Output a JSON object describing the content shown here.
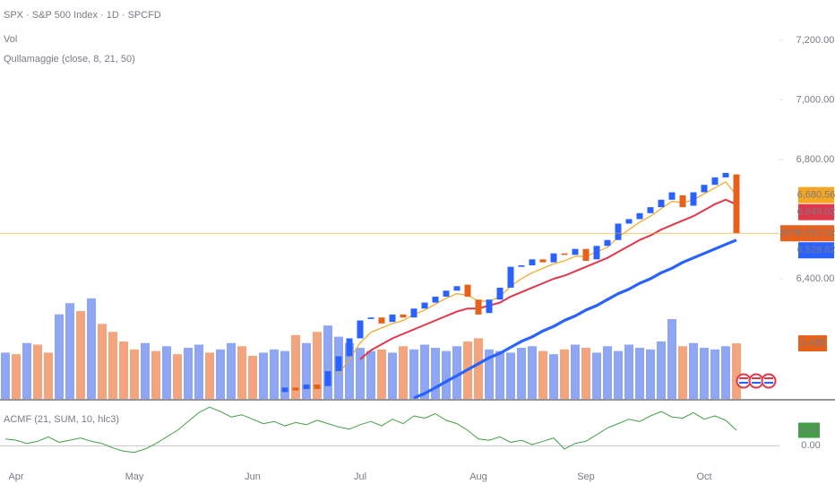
{
  "chart_data": {
    "type": "candlestick",
    "title": "SPX · S&P 500 Index · 1D · SPCFD",
    "volume_title": "Vol",
    "overlay_title": "Qullamaggie (close, 8, 21, 50)",
    "price_tag": "SPX",
    "categories": [
      null,
      "Apr",
      null,
      null,
      null,
      null,
      null,
      null,
      null,
      null,
      null,
      null,
      "May",
      null,
      null,
      null,
      null,
      null,
      null,
      null,
      null,
      null,
      null,
      "Jun",
      null,
      null,
      null,
      null,
      null,
      null,
      null,
      null,
      null,
      "Jul",
      null,
      null,
      null,
      null,
      null,
      null,
      null,
      null,
      null,
      null,
      "Aug",
      null,
      null,
      null,
      null,
      null,
      null,
      null,
      null,
      null,
      "Sep",
      null,
      null,
      null,
      null,
      null,
      null,
      null,
      null,
      null,
      null,
      "Oct",
      null,
      null,
      null
    ],
    "open": [
      null,
      null,
      null,
      null,
      null,
      null,
      null,
      null,
      null,
      null,
      null,
      null,
      null,
      null,
      null,
      null,
      null,
      null,
      null,
      null,
      null,
      null,
      null,
      null,
      null,
      null,
      6020,
      6035,
      6030,
      6045,
      6040,
      6090,
      6140,
      6200,
      6265,
      6270,
      6255,
      6280,
      6270,
      6300,
      6320,
      6340,
      6360,
      6380,
      6330,
      6285,
      6330,
      6370,
      6440,
      6445,
      6465,
      6455,
      6485,
      6480,
      6500,
      6465,
      6510,
      6530,
      6585,
      6600,
      6620,
      6640,
      6665,
      6680,
      6645,
      6690,
      6715,
      6740,
      6750
    ],
    "close": [
      null,
      null,
      null,
      null,
      null,
      null,
      null,
      null,
      null,
      null,
      null,
      null,
      null,
      null,
      null,
      null,
      null,
      null,
      null,
      null,
      null,
      null,
      null,
      null,
      null,
      null,
      6035,
      6025,
      6045,
      6030,
      6090,
      6140,
      6200,
      6260,
      6270,
      6250,
      6280,
      6270,
      6300,
      6320,
      6340,
      6360,
      6375,
      6340,
      6280,
      6330,
      6370,
      6440,
      6445,
      6465,
      6455,
      6485,
      6480,
      6500,
      6460,
      6510,
      6530,
      6585,
      6600,
      6620,
      6640,
      6665,
      6690,
      6640,
      6690,
      6715,
      6740,
      6755,
      6552.52
    ],
    "close_last_label": "6,552.52",
    "up_color": "#2962ff",
    "down_color": "#e8611a",
    "ylim": [
      5997,
      7335
    ],
    "yticks": [
      {
        "value": 7200,
        "label": "7,200.00"
      },
      {
        "value": 7000,
        "label": "7,000.00"
      },
      {
        "value": 6800,
        "label": "6,800.00"
      },
      {
        "value": 6400,
        "label": "6,400.00"
      }
    ],
    "series": [
      {
        "color": "#f5a623",
        "last_label": "6,680.56",
        "values": [
          null,
          null,
          null,
          null,
          null,
          null,
          null,
          null,
          null,
          null,
          null,
          null,
          null,
          null,
          null,
          null,
          null,
          null,
          null,
          null,
          null,
          null,
          null,
          null,
          null,
          null,
          null,
          null,
          null,
          null,
          null,
          6080,
          6130,
          6185,
          6220,
          6235,
          6250,
          6260,
          6280,
          6295,
          6315,
          6335,
          6350,
          6345,
          6325,
          6325,
          6340,
          6375,
          6400,
          6420,
          6435,
          6450,
          6460,
          6475,
          6475,
          6490,
          6505,
          6540,
          6565,
          6590,
          6610,
          6635,
          6660,
          6655,
          6665,
          6685,
          6705,
          6725,
          6680.56
        ]
      },
      {
        "color": "#e0384a",
        "last_label": "6,649.02",
        "values": [
          null,
          null,
          null,
          null,
          null,
          null,
          null,
          null,
          null,
          null,
          null,
          null,
          null,
          null,
          null,
          null,
          null,
          null,
          null,
          null,
          null,
          null,
          null,
          null,
          null,
          null,
          null,
          null,
          null,
          null,
          null,
          null,
          null,
          6130,
          6160,
          6180,
          6200,
          6215,
          6230,
          6245,
          6260,
          6275,
          6290,
          6300,
          6300,
          6310,
          6320,
          6340,
          6355,
          6370,
          6385,
          6400,
          6410,
          6425,
          6440,
          6455,
          6470,
          6490,
          6510,
          6530,
          6545,
          6565,
          6580,
          6595,
          6610,
          6630,
          6650,
          6665,
          6649.02
        ]
      },
      {
        "color": "#2962ff",
        "last_label": "6,529.82",
        "values": [
          null,
          null,
          null,
          null,
          null,
          null,
          null,
          null,
          null,
          null,
          null,
          null,
          null,
          null,
          null,
          null,
          null,
          null,
          null,
          null,
          null,
          null,
          null,
          null,
          null,
          null,
          null,
          null,
          null,
          null,
          null,
          null,
          null,
          null,
          null,
          null,
          null,
          null,
          6000,
          6015,
          6035,
          6055,
          6075,
          6095,
          6115,
          6135,
          6150,
          6170,
          6190,
          6205,
          6225,
          6240,
          6260,
          6275,
          6295,
          6310,
          6330,
          6350,
          6365,
          6385,
          6400,
          6420,
          6435,
          6455,
          6470,
          6485,
          6500,
          6515,
          6529.82
        ]
      }
    ],
    "volume": {
      "values": [
        2.9,
        2.8,
        3.5,
        3.4,
        2.9,
        5.3,
        6.0,
        5.5,
        6.3,
        4.7,
        4.2,
        3.6,
        3.1,
        3.5,
        3.0,
        3.3,
        2.8,
        3.2,
        3.4,
        2.9,
        3.1,
        3.5,
        3.3,
        2.7,
        2.9,
        3.1,
        3.0,
        4.0,
        3.5,
        4.2,
        4.6,
        3.9,
        3.5,
        3.2,
        3.0,
        3.1,
        2.9,
        3.3,
        3.1,
        3.4,
        3.2,
        3.0,
        3.3,
        3.6,
        3.8,
        3.1,
        3.0,
        2.9,
        3.2,
        3.3,
        3.0,
        2.8,
        3.1,
        3.4,
        3.2,
        2.9,
        3.3,
        3.0,
        3.4,
        3.2,
        3.1,
        3.6,
        5.0,
        3.3,
        3.5,
        3.2,
        3.1,
        3.3,
        3.48
      ],
      "last_label": "3.48B",
      "ylim": [
        0,
        25
      ],
      "up_color": "#8fa6f5",
      "down_color": "#f4a57d"
    },
    "indicator": {
      "title": "ACMF (21, SUM, 10, hlc3)",
      "color": "#43a047",
      "values": [
        0.06,
        0.05,
        0.02,
        0.04,
        0.08,
        0.03,
        0.05,
        0.07,
        0.04,
        0.02,
        -0.02,
        -0.05,
        -0.06,
        -0.03,
        0.02,
        0.08,
        0.14,
        0.22,
        0.3,
        0.35,
        0.31,
        0.26,
        0.28,
        0.24,
        0.2,
        0.22,
        0.18,
        0.21,
        0.19,
        0.23,
        0.2,
        0.17,
        0.15,
        0.19,
        0.22,
        0.18,
        0.24,
        0.2,
        0.27,
        0.25,
        0.29,
        0.23,
        0.2,
        0.14,
        0.06,
        0.05,
        0.08,
        0.03,
        0.05,
        0.01,
        0.04,
        0.07,
        -0.03,
        0.02,
        0.04,
        0.1,
        0.16,
        0.2,
        0.24,
        0.22,
        0.27,
        0.31,
        0.26,
        0.25,
        0.3,
        0.24,
        0.27,
        0.23,
        0.14
      ],
      "ylim": [
        -0.12,
        0.4
      ],
      "yticks": [
        {
          "value": 0,
          "label": "0.00"
        }
      ]
    }
  }
}
